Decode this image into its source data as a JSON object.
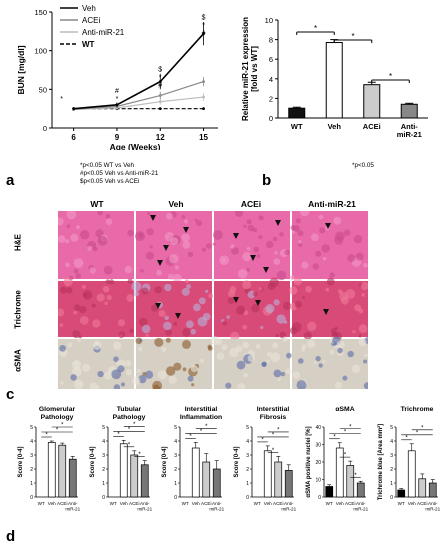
{
  "panel_labels": {
    "a": "a",
    "b": "b",
    "c": "c",
    "d": "d"
  },
  "panel_a": {
    "notes": [
      "*p<0.05 WT vs Veh",
      "#p<0.05 Veh vs Anti-miR-21",
      "$p<0.05 Veh vs ACEi"
    ],
    "legend": [
      {
        "name": "Veh",
        "style": "solid",
        "color": "#000000"
      },
      {
        "name": "ACEi",
        "style": "solid",
        "color": "#888888"
      },
      {
        "name": "Anti-miR-21",
        "style": "solid",
        "color": "#bbbbbb"
      },
      {
        "name": "WT",
        "style": "dashed",
        "color": "#000000"
      }
    ]
  },
  "panel_b": {
    "note": "*p<0.05"
  },
  "panel_c": {
    "columns": [
      "WT",
      "Veh",
      "ACEi",
      "Anti-miR-21"
    ],
    "rows": [
      "H&E",
      "Trichrome",
      "αSMA"
    ],
    "colors": {
      "he": "#e86aa8",
      "trichrome": "#d84a78",
      "asma": "#d6cfc4"
    }
  },
  "chart_data": [
    {
      "type": "line",
      "panel": "a",
      "xlabel": "Age (Weeks)",
      "ylabel": "BUN [mg/dl]",
      "x": [
        6,
        9,
        12,
        15
      ],
      "ylim": [
        0,
        150
      ],
      "yticks": [
        0,
        50,
        100,
        150
      ],
      "series": [
        {
          "name": "Veh",
          "values": [
            25,
            30,
            60,
            122
          ]
        },
        {
          "name": "ACEi",
          "values": [
            24,
            28,
            42,
            60
          ]
        },
        {
          "name": "Anti-miR-21",
          "values": [
            24,
            26,
            34,
            40
          ]
        },
        {
          "name": "WT",
          "values": [
            25,
            25,
            25,
            25
          ]
        }
      ],
      "annotations": [
        {
          "x": 6,
          "text": "*"
        },
        {
          "x": 9,
          "text": "#"
        },
        {
          "x": 9,
          "text": "*"
        },
        {
          "x": 12,
          "text": "$"
        },
        {
          "x": 12,
          "text": "*"
        },
        {
          "x": 12,
          "text": "#"
        },
        {
          "x": 15,
          "text": "$"
        },
        {
          "x": 15,
          "text": "*"
        },
        {
          "x": 15,
          "text": "#"
        }
      ]
    },
    {
      "type": "bar",
      "panel": "b",
      "ylabel": "Relative miR-21 expression\n[fold vs WT]",
      "categories": [
        "WT",
        "Veh",
        "ACEi",
        "Anti-\nmiR-21"
      ],
      "values": [
        1.0,
        7.7,
        3.4,
        1.4
      ],
      "errors": [
        0.1,
        0.3,
        0.25,
        0.1
      ],
      "fills": [
        "#111111",
        "#ffffff",
        "#cccccc",
        "#888888"
      ],
      "ylim": [
        0,
        10
      ],
      "yticks": [
        0,
        2,
        4,
        6,
        8,
        10
      ]
    },
    {
      "type": "bar",
      "panel": "d",
      "title": "Glomerular\nPathology",
      "ylabel": "Score [0-4]",
      "categories": [
        "WT",
        "Veh",
        "ACEi",
        "Anti-\nmiR-21"
      ],
      "values": [
        0,
        3.9,
        3.7,
        2.7
      ],
      "errors": [
        0,
        0.1,
        0.15,
        0.2
      ],
      "ylim": [
        0,
        5
      ],
      "yticks": [
        0,
        1,
        2,
        3,
        4,
        5
      ]
    },
    {
      "type": "bar",
      "panel": "d",
      "title": "Tubular\nPathology",
      "ylabel": "Score [0-4]",
      "categories": [
        "WT",
        "Veh",
        "ACEi",
        "Anti-\nmiR-21"
      ],
      "values": [
        0,
        3.8,
        3.0,
        2.3
      ],
      "errors": [
        0,
        0.25,
        0.3,
        0.3
      ],
      "ylim": [
        0,
        5
      ],
      "yticks": [
        0,
        1,
        2,
        3,
        4,
        5
      ]
    },
    {
      "type": "bar",
      "panel": "d",
      "title": "Interstitial\nInflammation",
      "ylabel": "Score [0-4]",
      "categories": [
        "WT",
        "Veh",
        "ACEi",
        "Anti-\nmiR-21"
      ],
      "values": [
        0,
        3.5,
        2.5,
        2.0
      ],
      "errors": [
        0,
        0.4,
        0.6,
        0.6
      ],
      "ylim": [
        0,
        5
      ],
      "yticks": [
        0,
        1,
        2,
        3,
        4,
        5
      ]
    },
    {
      "type": "bar",
      "panel": "d",
      "title": "Interstitial\nFibrosis",
      "ylabel": "Score [0-4]",
      "categories": [
        "WT",
        "Veh",
        "ACEi",
        "Anti-\nmiR-21"
      ],
      "values": [
        0,
        3.3,
        2.5,
        1.9
      ],
      "errors": [
        0,
        0.35,
        0.4,
        0.4
      ],
      "ylim": [
        0,
        5
      ],
      "yticks": [
        0,
        1,
        2,
        3,
        4,
        5
      ]
    },
    {
      "type": "bar",
      "panel": "d",
      "title": "αSMA",
      "ylabel": "αSMA positive nuclei [%]",
      "categories": [
        "WT",
        "Veh",
        "ACEi",
        "Anti-\nmiR-21"
      ],
      "values": [
        6,
        28,
        18,
        8
      ],
      "errors": [
        1,
        3,
        2.5,
        1
      ],
      "ylim": [
        0,
        40
      ],
      "yticks": [
        0,
        10,
        20,
        30,
        40
      ]
    },
    {
      "type": "bar",
      "panel": "d",
      "title": "Trichrome",
      "ylabel": "Trichrome blue [Area mm²]",
      "categories": [
        "WT",
        "Veh",
        "ACEi",
        "Anti-\nmiR-21"
      ],
      "values": [
        0.5,
        3.3,
        1.3,
        1.0
      ],
      "errors": [
        0.1,
        0.5,
        0.35,
        0.25
      ],
      "ylim": [
        0,
        5
      ],
      "yticks": [
        0,
        1,
        2,
        3,
        4,
        5
      ]
    }
  ]
}
